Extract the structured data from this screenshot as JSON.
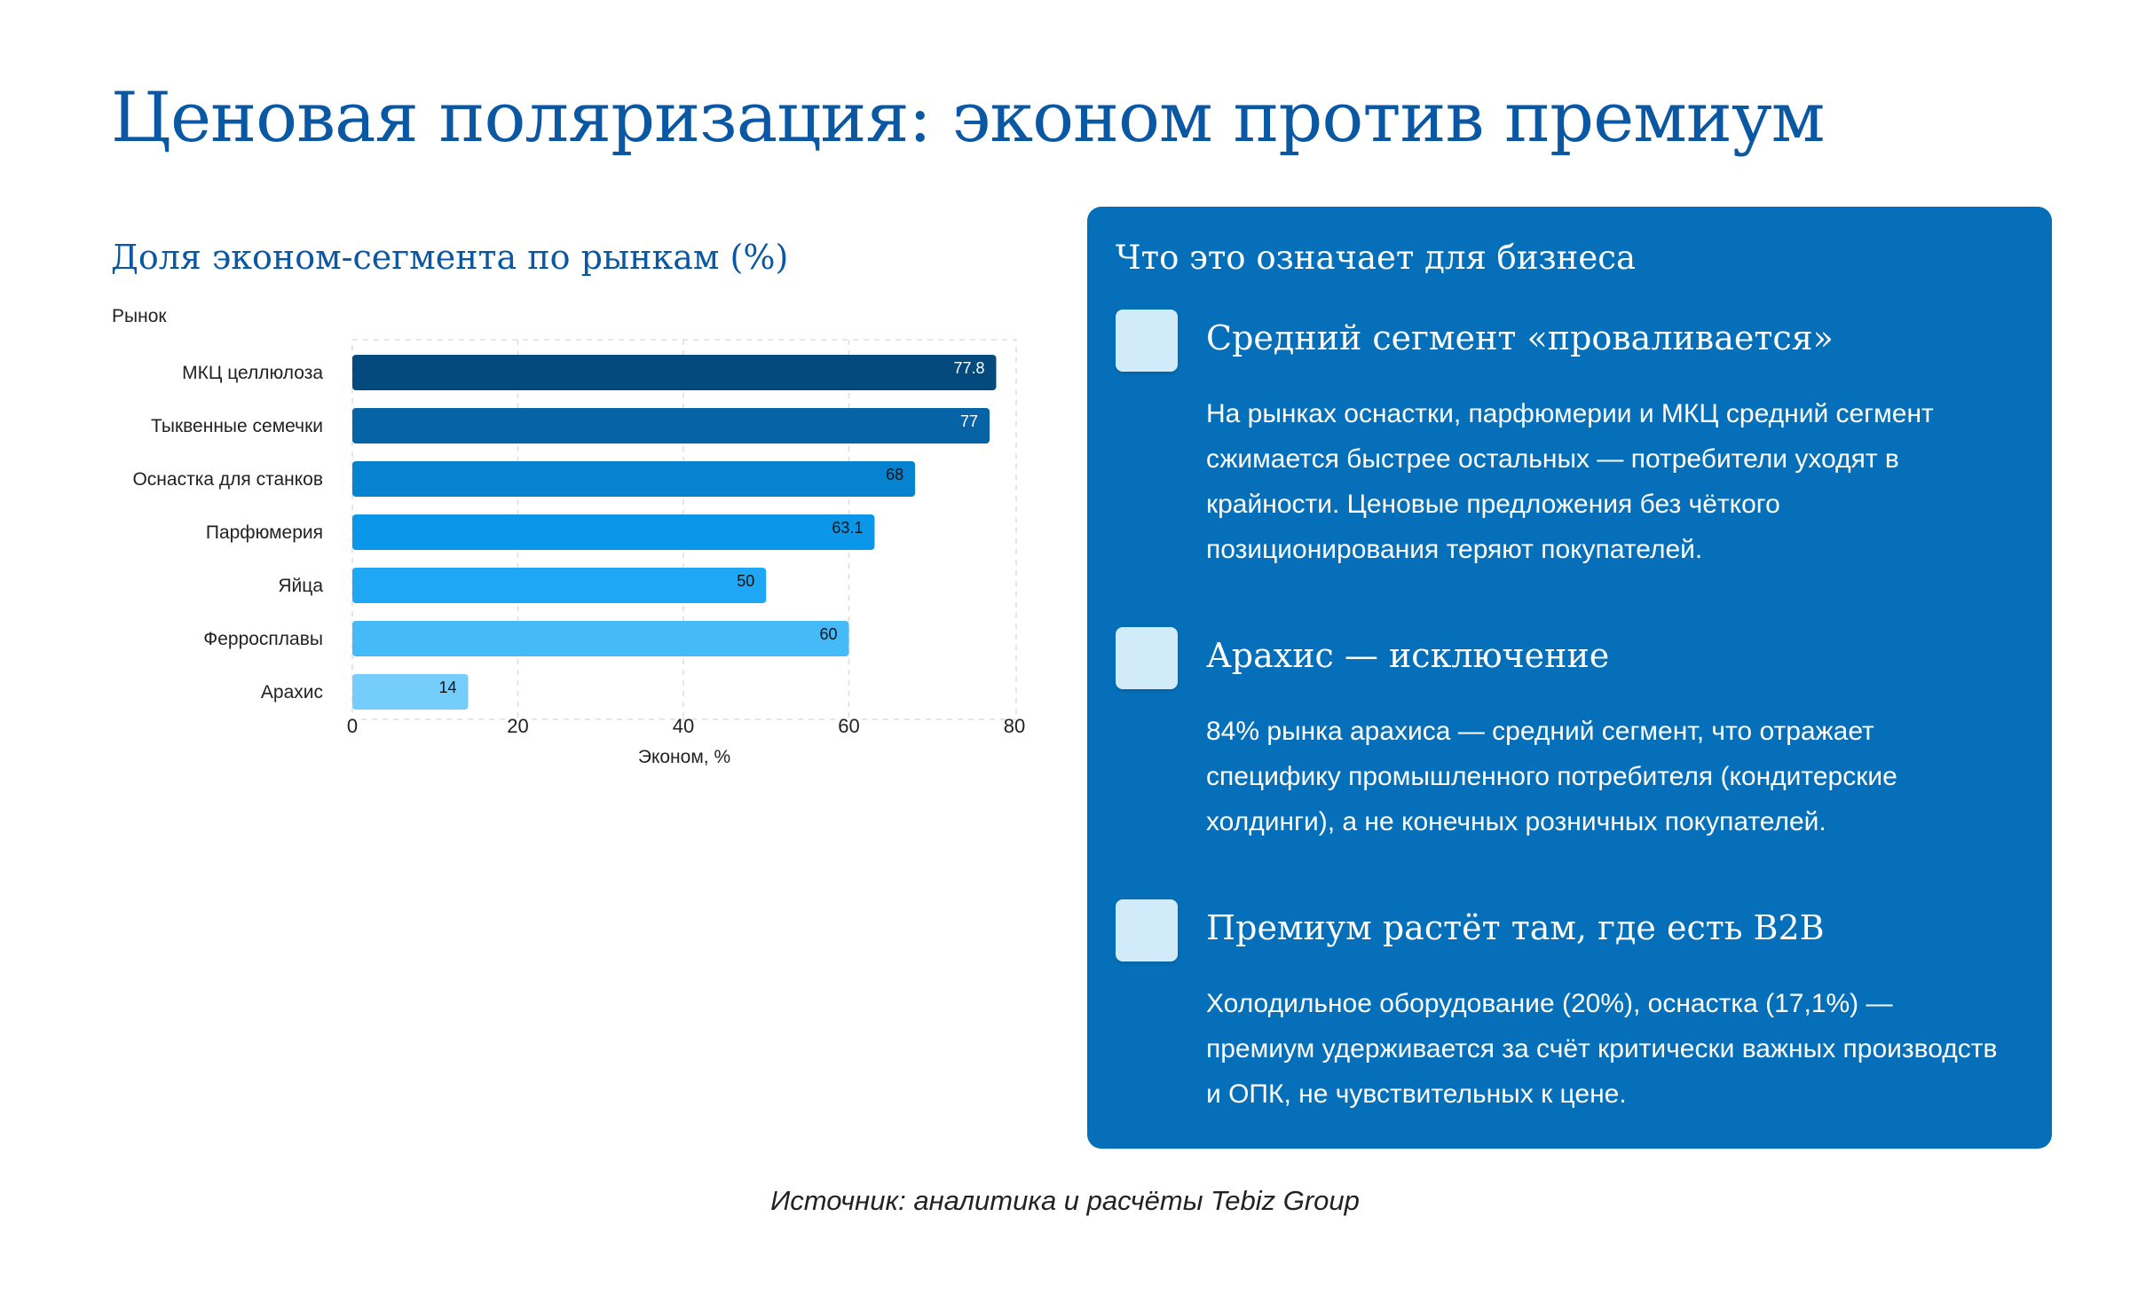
{
  "title": "Ценовая поляризация: эконом против премиум",
  "chart_data": {
    "type": "bar",
    "orientation": "horizontal",
    "title": "Доля эконом-сегмента по рынкам (%)",
    "ylabel": "Рынок",
    "xlabel": "Эконом, %",
    "categories": [
      "МКЦ целлюлоза",
      "Тыквенные семечки",
      "Оснастка для станков",
      "Парфюмерия",
      "Яйца",
      "Ферросплавы",
      "Арахис"
    ],
    "values": [
      77.8,
      77,
      68,
      63.1,
      50,
      60,
      14
    ],
    "value_labels": [
      "77.8",
      "77",
      "68",
      "63.1",
      "50",
      "60",
      "14"
    ],
    "bar_colors": [
      "#054a7f",
      "#0663a6",
      "#0683d0",
      "#0a97ea",
      "#1fa6f5",
      "#45baf8",
      "#74cdfa"
    ],
    "label_colors": [
      "#ffffff",
      "#ffffff",
      "#111111",
      "#111111",
      "#111111",
      "#111111",
      "#111111"
    ],
    "xlim": [
      0,
      80
    ],
    "xticks": [
      "0",
      "20",
      "40",
      "60",
      "80"
    ],
    "grid": true,
    "legend": "none"
  },
  "panel": {
    "heading": "Что это означает для бизнеса",
    "points": [
      {
        "title": "Средний сегмент «проваливается»",
        "text": "На рынках оснастки, парфюмерии и МКЦ средний сегмент сжимается быстрее остальных — потребители уходят в крайности. Ценовые предложения без чёткого позиционирования теряют покупателей."
      },
      {
        "title": "Арахис — исключение",
        "text": "84% рынка арахиса — средний сегмент, что отражает специфику промышленного потребителя (кондитерские холдинги), а не конечных розничных покупателей."
      },
      {
        "title": "Премиум растёт там, где есть B2B",
        "text": "Холодильное оборудование (20%), оснастка (17,1%) — премиум удерживается за счёт критически важных производств и ОПК, не чувствительных к цене."
      }
    ]
  },
  "source": "Источник: аналитика и расчёты Tebiz Group"
}
